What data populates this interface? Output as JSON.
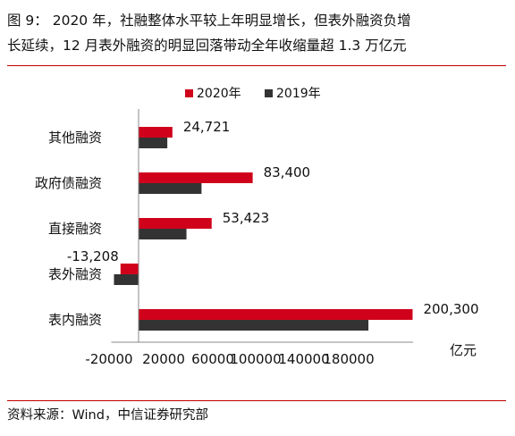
{
  "title": {
    "line1": "图 9：  2020 年，社融整体水平较上年明显增长，但表外融资负增",
    "line2": "长延续，12 月表外融资的明显回落带动全年收缩量超 1.3 万亿元"
  },
  "source": "资料来源：Wind，中信证券研究部",
  "colors": {
    "series_2020": "#d0021b",
    "series_2019": "#333333",
    "rule": "#c00000"
  },
  "chart_data": {
    "type": "bar",
    "orientation": "horizontal",
    "categories": [
      "其他融资",
      "政府债融资",
      "直接融资",
      "表外融资",
      "表内融资"
    ],
    "series": [
      {
        "name": "2020年",
        "values": [
          24721,
          83400,
          53423,
          -13208,
          200300
        ],
        "labels": [
          "24,721",
          "83,400",
          "53,423",
          "-13,208",
          "200,300"
        ]
      },
      {
        "name": "2019年",
        "values": [
          21000,
          46000,
          35000,
          -18000,
          168000
        ]
      }
    ],
    "xticks": [
      "-20000",
      "20000",
      "60000",
      "100000",
      "140000",
      "180000"
    ],
    "xtick_values": [
      -20000,
      20000,
      60000,
      100000,
      140000,
      180000
    ],
    "xlim": [
      -20000,
      200000
    ],
    "unit_label": "亿元",
    "legend_position": "top-center",
    "grid": false
  }
}
